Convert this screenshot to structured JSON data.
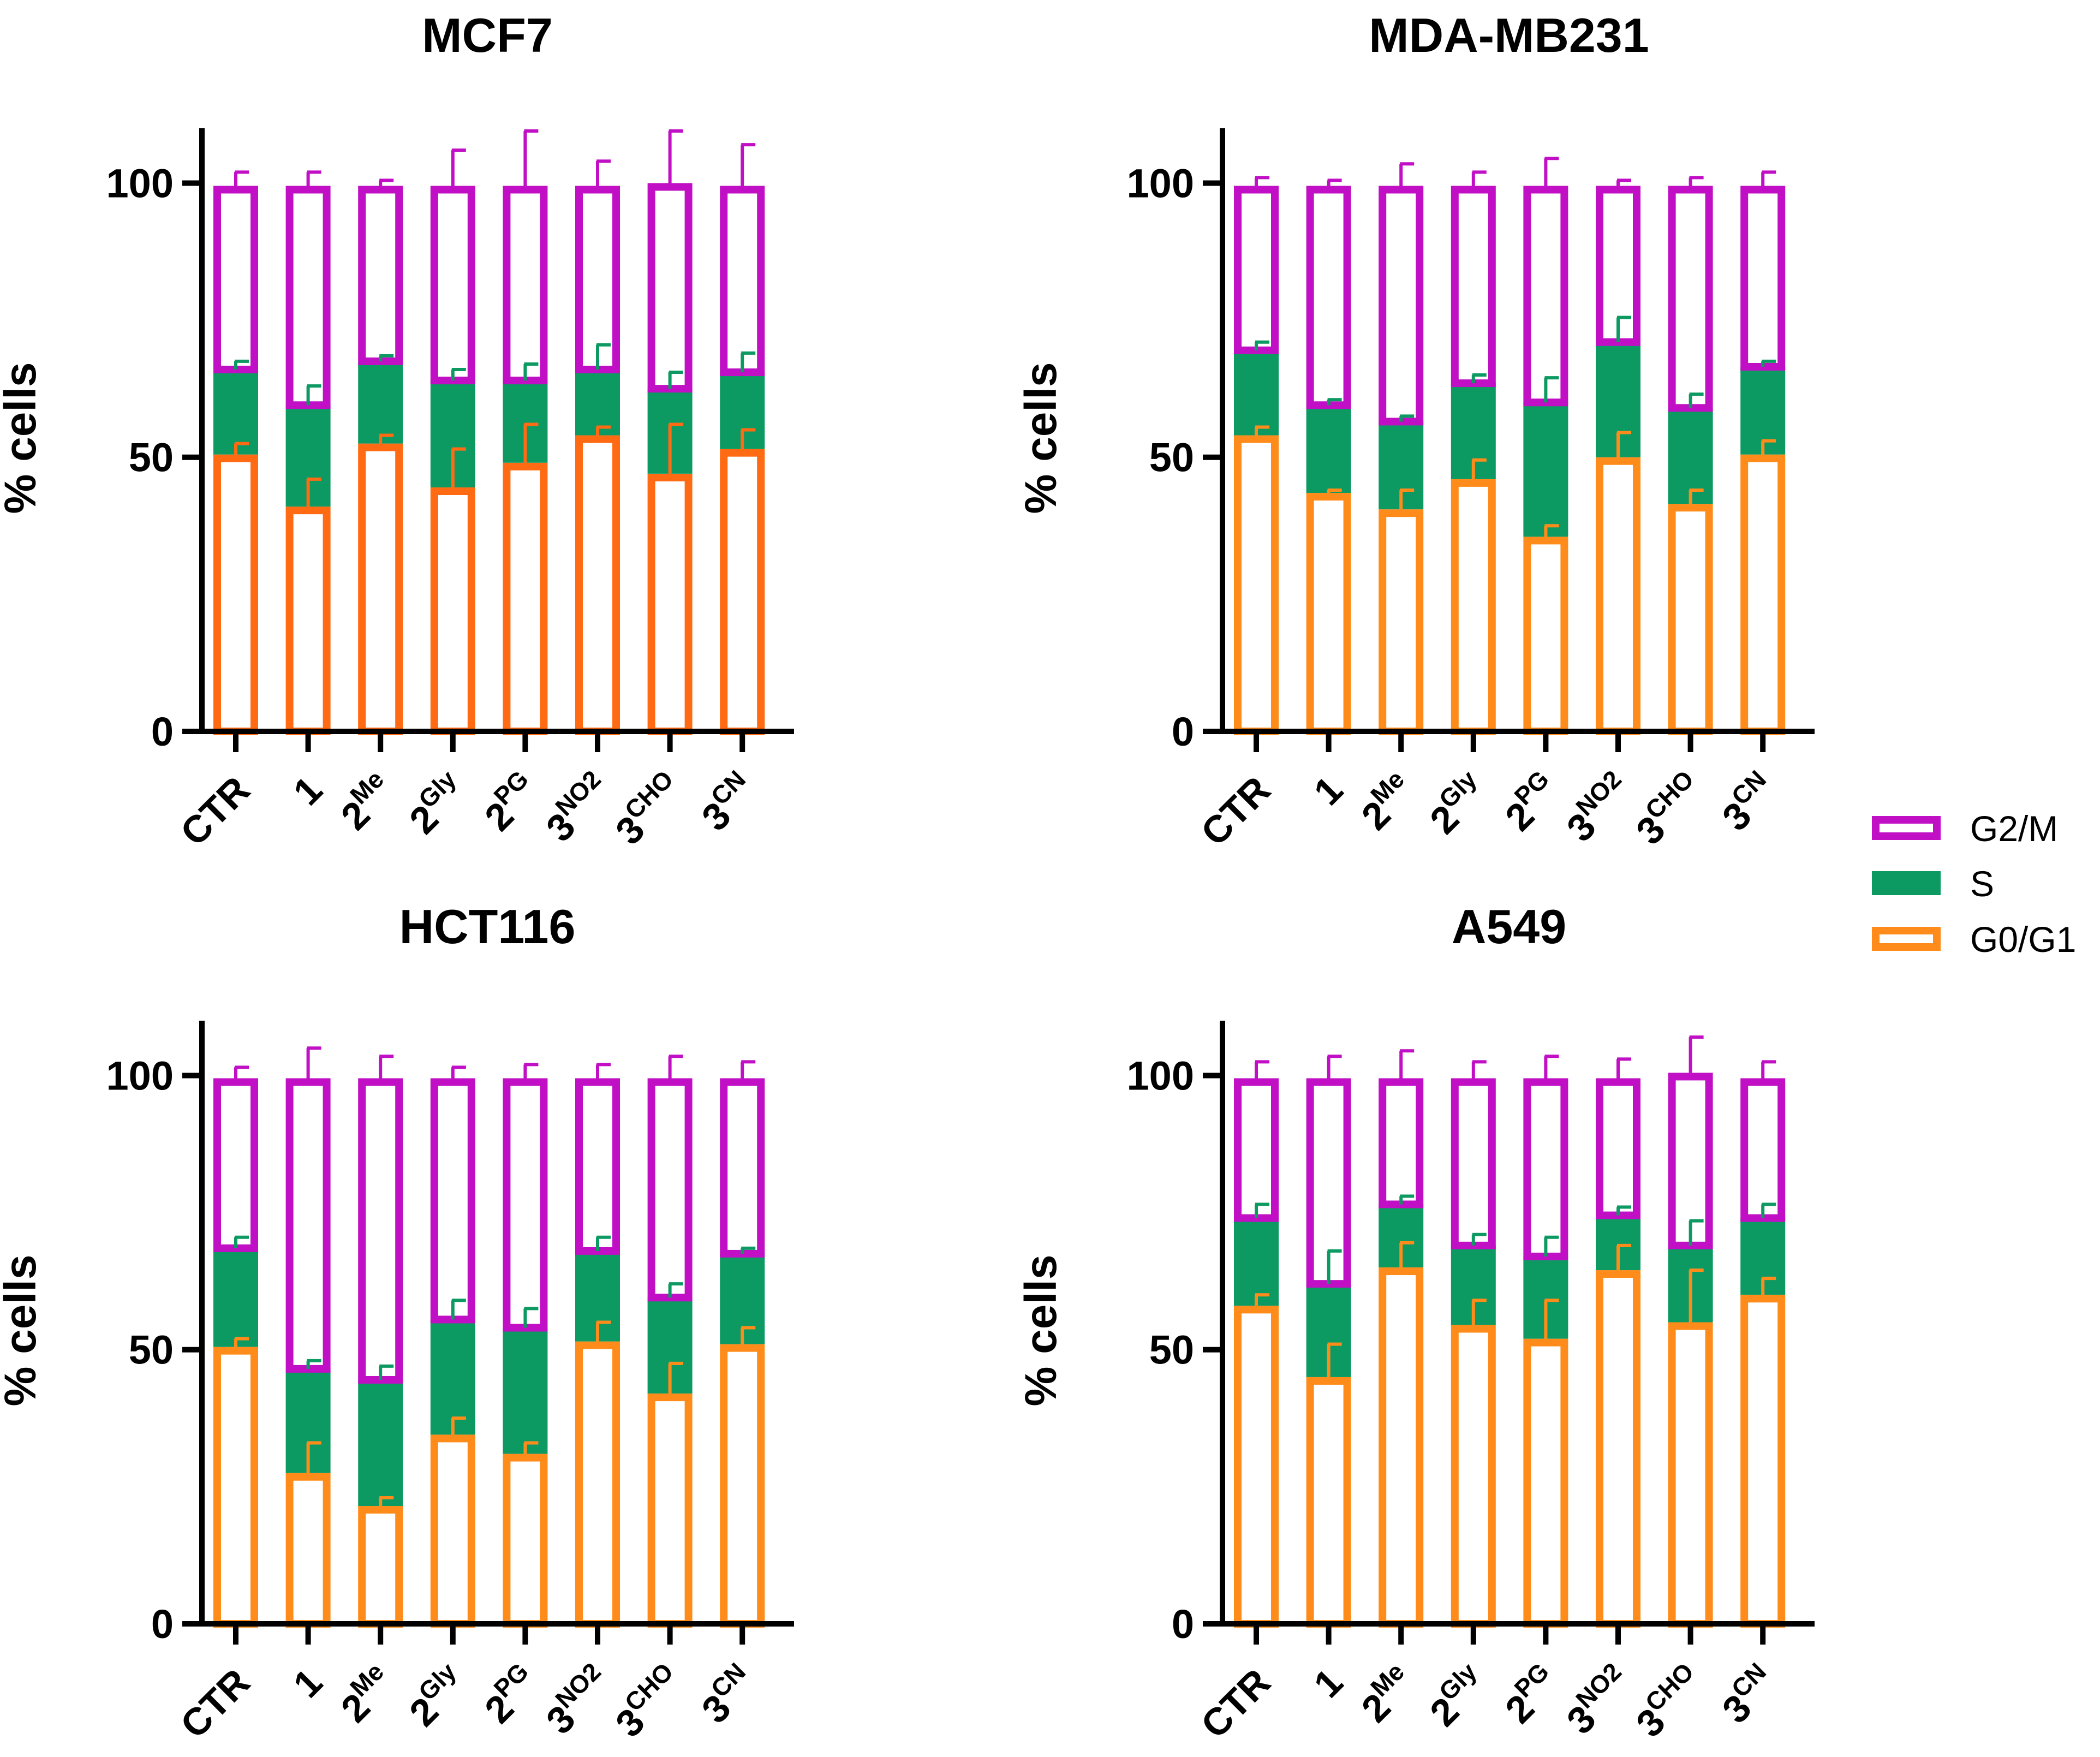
{
  "chart_data": [
    {
      "type": "stacked-bar",
      "title": "MCF7",
      "ylabel": "% cells",
      "ylim": [
        0,
        110
      ],
      "yticks": [
        0,
        50,
        100
      ],
      "categories": [
        {
          "base": "CTR",
          "sup": ""
        },
        {
          "base": "1",
          "sup": ""
        },
        {
          "base": "2",
          "sup": "Me"
        },
        {
          "base": "2",
          "sup": "Gly"
        },
        {
          "base": "2",
          "sup": "PG"
        },
        {
          "base": "3",
          "sup": "NO2"
        },
        {
          "base": "3",
          "sup": "CHO"
        },
        {
          "base": "3",
          "sup": "CN"
        }
      ],
      "g1_color": "#ff6a13",
      "series": [
        {
          "name": "G0/G1",
          "top": [
            50.5,
            41,
            52.5,
            44.5,
            49,
            54,
            47,
            51.5
          ],
          "err": [
            2,
            5,
            1.5,
            7,
            7,
            1.5,
            9,
            3.5
          ]
        },
        {
          "name": "S",
          "top": [
            66,
            59.5,
            67.5,
            64,
            64,
            66,
            62.5,
            65.5
          ],
          "err": [
            1.5,
            3.5,
            1,
            2,
            3,
            4.5,
            3,
            3.5
          ]
        },
        {
          "name": "G2/M",
          "top": [
            99.5,
            99.5,
            99.5,
            99.5,
            99.5,
            99.5,
            100,
            99.5
          ],
          "err": [
            2.5,
            2.5,
            1,
            6.5,
            10,
            4.5,
            9.5,
            7.5
          ]
        }
      ]
    },
    {
      "type": "stacked-bar",
      "title": "MDA-MB231",
      "ylabel": "% cells",
      "ylim": [
        0,
        110
      ],
      "yticks": [
        0,
        50,
        100
      ],
      "categories": [
        {
          "base": "CTR",
          "sup": ""
        },
        {
          "base": "1",
          "sup": ""
        },
        {
          "base": "2",
          "sup": "Me"
        },
        {
          "base": "2",
          "sup": "Gly"
        },
        {
          "base": "2",
          "sup": "PG"
        },
        {
          "base": "3",
          "sup": "NO2"
        },
        {
          "base": "3",
          "sup": "CHO"
        },
        {
          "base": "3",
          "sup": "CN"
        }
      ],
      "g1_color": "#ff8c1a",
      "series": [
        {
          "name": "G0/G1",
          "top": [
            54,
            43.5,
            40.5,
            46,
            35.5,
            50,
            41.5,
            50.5
          ],
          "err": [
            1.5,
            0.5,
            3.5,
            3.5,
            2,
            4.5,
            2.5,
            2.5
          ]
        },
        {
          "name": "S",
          "top": [
            69.5,
            59.5,
            56.5,
            63.5,
            60,
            71,
            59,
            66.5
          ],
          "err": [
            1.5,
            1,
            1,
            1.5,
            4.5,
            4.5,
            2.5,
            1
          ]
        },
        {
          "name": "G2/M",
          "top": [
            99.5,
            99.5,
            99.5,
            99.5,
            99.5,
            99.5,
            99.5,
            99.5
          ],
          "err": [
            1.5,
            1,
            4,
            2.5,
            5,
            1,
            1.5,
            2.5
          ]
        }
      ]
    },
    {
      "type": "stacked-bar",
      "title": "HCT116",
      "ylabel": "% cells",
      "ylim": [
        0,
        110
      ],
      "yticks": [
        0,
        50,
        100
      ],
      "categories": [
        {
          "base": "CTR",
          "sup": ""
        },
        {
          "base": "1",
          "sup": ""
        },
        {
          "base": "2",
          "sup": "Me"
        },
        {
          "base": "2",
          "sup": "Gly"
        },
        {
          "base": "2",
          "sup": "PG"
        },
        {
          "base": "3",
          "sup": "NO2"
        },
        {
          "base": "3",
          "sup": "CHO"
        },
        {
          "base": "3",
          "sup": "CN"
        }
      ],
      "g1_color": "#ff8c1a",
      "series": [
        {
          "name": "G0/G1",
          "top": [
            50.5,
            27.5,
            21.5,
            34.5,
            31,
            51.5,
            42,
            51
          ],
          "err": [
            1.5,
            5.5,
            1.5,
            3,
            2,
            3.5,
            5.5,
            3
          ]
        },
        {
          "name": "S",
          "top": [
            68.5,
            46.5,
            44.5,
            55.5,
            54,
            68,
            59.5,
            67.5
          ],
          "err": [
            2,
            1.5,
            2.5,
            3.5,
            3.5,
            2.5,
            2.5,
            1
          ]
        },
        {
          "name": "G2/M",
          "top": [
            99.5,
            99.5,
            99.5,
            99.5,
            99.5,
            99.5,
            99.5,
            99.5
          ],
          "err": [
            2,
            5.5,
            4,
            2,
            2.5,
            2.5,
            4,
            3
          ]
        }
      ]
    },
    {
      "type": "stacked-bar",
      "title": "A549",
      "ylabel": "% cells",
      "ylim": [
        0,
        110
      ],
      "yticks": [
        0,
        50,
        100
      ],
      "categories": [
        {
          "base": "CTR",
          "sup": ""
        },
        {
          "base": "1",
          "sup": ""
        },
        {
          "base": "2",
          "sup": "Me"
        },
        {
          "base": "2",
          "sup": "Gly"
        },
        {
          "base": "2",
          "sup": "PG"
        },
        {
          "base": "3",
          "sup": "NO2"
        },
        {
          "base": "3",
          "sup": "CHO"
        },
        {
          "base": "3",
          "sup": "CN"
        }
      ],
      "g1_color": "#ff8c1a",
      "series": [
        {
          "name": "G0/G1",
          "top": [
            58,
            45,
            65,
            54.5,
            52,
            64.5,
            55,
            60
          ],
          "err": [
            2,
            6,
            4.5,
            4.5,
            7,
            4.5,
            9.5,
            3
          ]
        },
        {
          "name": "S",
          "top": [
            74,
            62,
            76.5,
            69,
            67,
            74.5,
            69,
            74
          ],
          "err": [
            2.5,
            6,
            1.5,
            2,
            3.5,
            1.5,
            4.5,
            2.5
          ]
        },
        {
          "name": "G2/M",
          "top": [
            99.5,
            99.5,
            99.5,
            99.5,
            99.5,
            99.5,
            100.5,
            99.5
          ],
          "err": [
            3,
            4,
            5,
            3,
            4,
            3.5,
            6.5,
            3
          ]
        }
      ]
    }
  ],
  "legend": {
    "items": [
      {
        "label": "G2/M",
        "style": "outline",
        "color": "#c00fc4"
      },
      {
        "label": "S",
        "style": "filled",
        "color": "#0d9a62"
      },
      {
        "label": "G0/G1",
        "style": "outline",
        "color": "#ff8c1a"
      }
    ]
  },
  "colors": {
    "g2m": "#c00fc4",
    "s": "#0d9a62",
    "axis": "#000000"
  }
}
